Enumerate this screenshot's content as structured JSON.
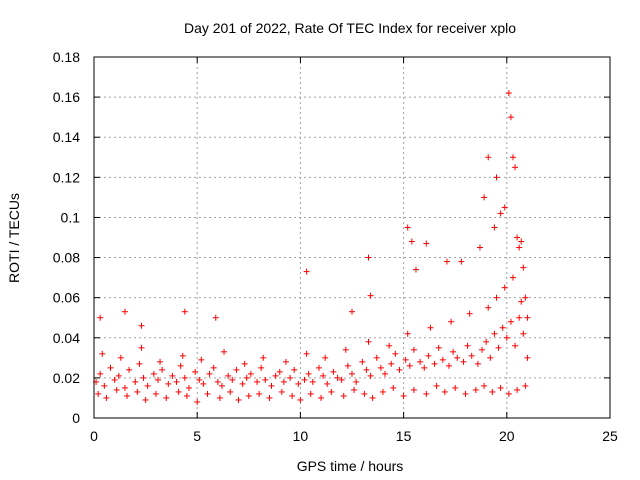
{
  "chart_data": {
    "type": "scatter",
    "title": "Day 201 of 2022, Rate Of TEC Index for receiver xplo",
    "xlabel": "GPS time / hours",
    "ylabel": "ROTI / TECUs",
    "xlim": [
      0,
      25
    ],
    "ylim": [
      0,
      0.18
    ],
    "x_ticks": [
      "0",
      "5",
      "10",
      "15",
      "20",
      "25"
    ],
    "y_ticks": [
      "0",
      "0.02",
      "0.04",
      "0.06",
      "0.08",
      "0.1",
      "0.12",
      "0.14",
      "0.16",
      "0.18"
    ],
    "grid": true,
    "marker": "+",
    "color": "#ff0000",
    "series": [
      {
        "x": [
          0.1,
          0.3,
          0.5,
          0.8,
          1.0,
          1.2,
          1.5,
          1.7,
          2.0,
          2.2,
          2.4,
          2.6,
          2.9,
          3.1,
          3.3,
          3.6,
          3.8,
          4.0,
          4.2,
          4.4,
          4.6,
          4.9,
          5.1,
          5.3,
          5.6,
          5.8,
          6.0,
          6.2,
          6.5,
          6.7,
          6.9,
          7.2,
          7.4,
          7.6,
          7.9,
          8.1,
          8.3,
          8.6,
          8.8,
          9.0,
          9.2,
          9.5,
          9.7,
          9.9,
          10.2,
          10.4,
          10.6,
          10.9,
          11.1,
          11.3,
          11.6,
          11.8,
          12.0,
          12.3,
          12.5,
          12.7,
          13.0,
          13.2,
          13.4,
          13.7,
          13.9,
          14.1,
          14.4,
          14.6,
          14.8,
          15.1,
          15.3,
          15.5,
          15.8,
          16.0,
          16.2,
          16.5,
          16.7,
          16.9,
          17.2,
          17.4,
          17.6,
          17.9,
          18.1,
          18.3,
          18.6,
          18.8,
          19.0,
          19.2,
          19.4,
          19.6,
          19.8,
          20.0,
          20.2,
          20.4,
          20.6,
          20.8,
          21.0,
          0.2,
          0.6,
          1.1,
          1.6,
          2.1,
          2.5,
          3.0,
          3.5,
          4.1,
          4.5,
          5.0,
          5.5,
          6.1,
          6.6,
          7.0,
          7.5,
          8.0,
          8.5,
          9.1,
          9.6,
          10.0,
          10.5,
          11.0,
          11.5,
          12.1,
          12.6,
          13.1,
          13.5,
          14.0,
          14.5,
          15.0,
          15.5,
          16.1,
          16.6,
          17.0,
          17.5,
          18.0,
          18.5,
          18.9,
          19.3,
          19.7,
          20.1,
          20.5,
          20.9,
          0.4,
          1.3,
          2.3,
          3.2,
          4.3,
          5.2,
          6.3,
          7.3,
          8.2,
          9.3,
          10.3,
          11.2,
          12.2,
          13.3,
          14.3,
          15.2,
          16.3,
          17.3,
          18.2,
          19.1,
          19.5,
          19.9,
          20.3,
          20.7,
          0.3,
          1.5,
          2.3,
          4.4,
          5.9,
          10.3,
          12.5,
          13.3,
          13.4,
          15.2,
          15.4,
          15.6,
          16.1,
          17.1,
          17.8,
          18.7,
          18.9,
          19.1,
          19.4,
          19.5,
          19.7,
          19.9,
          20.1,
          20.2,
          20.3,
          20.4,
          20.5,
          20.6,
          20.7,
          20.8,
          20.9,
          21.0
        ],
        "y": [
          0.018,
          0.022,
          0.016,
          0.025,
          0.019,
          0.021,
          0.015,
          0.024,
          0.018,
          0.027,
          0.02,
          0.016,
          0.022,
          0.019,
          0.024,
          0.017,
          0.021,
          0.018,
          0.026,
          0.02,
          0.015,
          0.023,
          0.019,
          0.017,
          0.022,
          0.025,
          0.018,
          0.016,
          0.021,
          0.019,
          0.024,
          0.017,
          0.02,
          0.022,
          0.018,
          0.025,
          0.019,
          0.016,
          0.021,
          0.023,
          0.018,
          0.02,
          0.024,
          0.017,
          0.019,
          0.022,
          0.018,
          0.025,
          0.021,
          0.017,
          0.023,
          0.02,
          0.019,
          0.026,
          0.022,
          0.018,
          0.028,
          0.024,
          0.021,
          0.03,
          0.025,
          0.022,
          0.027,
          0.032,
          0.024,
          0.029,
          0.026,
          0.034,
          0.028,
          0.025,
          0.031,
          0.027,
          0.035,
          0.029,
          0.026,
          0.033,
          0.03,
          0.028,
          0.036,
          0.031,
          0.027,
          0.034,
          0.038,
          0.03,
          0.042,
          0.035,
          0.045,
          0.04,
          0.048,
          0.036,
          0.05,
          0.042,
          0.03,
          0.012,
          0.01,
          0.014,
          0.011,
          0.013,
          0.009,
          0.012,
          0.01,
          0.013,
          0.011,
          0.008,
          0.012,
          0.01,
          0.013,
          0.009,
          0.011,
          0.012,
          0.01,
          0.013,
          0.011,
          0.009,
          0.012,
          0.01,
          0.013,
          0.011,
          0.014,
          0.012,
          0.01,
          0.013,
          0.015,
          0.011,
          0.014,
          0.012,
          0.016,
          0.013,
          0.015,
          0.012,
          0.014,
          0.016,
          0.013,
          0.015,
          0.012,
          0.014,
          0.016,
          0.032,
          0.03,
          0.035,
          0.028,
          0.031,
          0.029,
          0.033,
          0.027,
          0.03,
          0.028,
          0.032,
          0.03,
          0.034,
          0.038,
          0.036,
          0.042,
          0.045,
          0.048,
          0.052,
          0.055,
          0.06,
          0.065,
          0.07,
          0.058,
          0.05,
          0.053,
          0.046,
          0.053,
          0.05,
          0.073,
          0.053,
          0.08,
          0.061,
          0.095,
          0.088,
          0.074,
          0.087,
          0.078,
          0.078,
          0.085,
          0.11,
          0.13,
          0.095,
          0.12,
          0.102,
          0.105,
          0.162,
          0.15,
          0.13,
          0.125,
          0.09,
          0.085,
          0.088,
          0.075,
          0.06,
          0.05
        ]
      }
    ]
  }
}
